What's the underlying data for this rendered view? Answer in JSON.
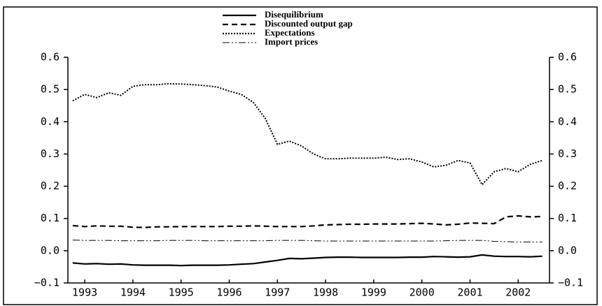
{
  "chart_data": {
    "type": "line",
    "x": [
      1993,
      1993.25,
      1993.5,
      1993.75,
      1994,
      1994.25,
      1994.5,
      1994.75,
      1995,
      1995.25,
      1995.5,
      1995.75,
      1996,
      1996.25,
      1996.5,
      1996.75,
      1997,
      1997.25,
      1997.5,
      1997.75,
      1998,
      1998.25,
      1998.5,
      1998.75,
      1999,
      1999.25,
      1999.5,
      1999.75,
      2000,
      2000.25,
      2000.5,
      2000.75,
      2001,
      2001.25,
      2001.5,
      2001.75,
      2002,
      2002.25,
      2002.5,
      2002.75
    ],
    "series": [
      {
        "name": "Disequilibrium",
        "color": "#000000",
        "dash": "solid",
        "values": [
          -0.038,
          -0.041,
          -0.04,
          -0.042,
          -0.041,
          -0.044,
          -0.045,
          -0.045,
          -0.045,
          -0.046,
          -0.045,
          -0.045,
          -0.045,
          -0.044,
          -0.042,
          -0.04,
          -0.035,
          -0.03,
          -0.024,
          -0.025,
          -0.023,
          -0.021,
          -0.02,
          -0.02,
          -0.021,
          -0.021,
          -0.021,
          -0.021,
          -0.02,
          -0.02,
          -0.018,
          -0.019,
          -0.02,
          -0.019,
          -0.013,
          -0.017,
          -0.018,
          -0.018,
          -0.019,
          -0.017
        ]
      },
      {
        "name": "Discounted output gap",
        "color": "#000000",
        "dash": "dashed",
        "values": [
          0.078,
          0.075,
          0.077,
          0.076,
          0.076,
          0.073,
          0.072,
          0.074,
          0.074,
          0.075,
          0.075,
          0.075,
          0.075,
          0.076,
          0.076,
          0.077,
          0.076,
          0.075,
          0.075,
          0.075,
          0.077,
          0.08,
          0.081,
          0.082,
          0.082,
          0.083,
          0.083,
          0.083,
          0.084,
          0.085,
          0.083,
          0.08,
          0.082,
          0.086,
          0.085,
          0.084,
          0.105,
          0.108,
          0.105,
          0.106
        ]
      },
      {
        "name": "Expectations",
        "color": "#000000",
        "dash": "dotted",
        "values": [
          0.465,
          0.485,
          0.475,
          0.49,
          0.482,
          0.51,
          0.515,
          0.515,
          0.518,
          0.517,
          0.515,
          0.512,
          0.508,
          0.495,
          0.485,
          0.46,
          0.41,
          0.33,
          0.34,
          0.325,
          0.3,
          0.285,
          0.285,
          0.287,
          0.287,
          0.287,
          0.29,
          0.283,
          0.285,
          0.275,
          0.26,
          0.265,
          0.28,
          0.272,
          0.205,
          0.245,
          0.255,
          0.245,
          0.268,
          0.28
        ]
      },
      {
        "name": "Import prices",
        "color": "#000000",
        "dash": "dashdotdot",
        "values": [
          0.033,
          0.032,
          0.032,
          0.032,
          0.031,
          0.031,
          0.031,
          0.031,
          0.032,
          0.032,
          0.032,
          0.031,
          0.031,
          0.031,
          0.031,
          0.031,
          0.031,
          0.032,
          0.032,
          0.032,
          0.031,
          0.03,
          0.03,
          0.03,
          0.03,
          0.03,
          0.03,
          0.03,
          0.03,
          0.03,
          0.03,
          0.031,
          0.032,
          0.032,
          0.032,
          0.029,
          0.028,
          0.027,
          0.027,
          0.027
        ]
      }
    ],
    "xlim": [
      1992.9,
      2002.9
    ],
    "xticks": [
      {
        "value": 1993.25,
        "label": "1993"
      },
      {
        "value": 1994.25,
        "label": "1994"
      },
      {
        "value": 1995.25,
        "label": "1995"
      },
      {
        "value": 1996.25,
        "label": "1996"
      },
      {
        "value": 1997.25,
        "label": "1997"
      },
      {
        "value": 1998.25,
        "label": "1998"
      },
      {
        "value": 1999.25,
        "label": "1999"
      },
      {
        "value": 2000.25,
        "label": "2000"
      },
      {
        "value": 2001.25,
        "label": "2001"
      },
      {
        "value": 2002.25,
        "label": "2002"
      }
    ],
    "ylim": [
      -0.1,
      0.6
    ],
    "yticks": [
      {
        "value": -0.1,
        "label": "−0.1"
      },
      {
        "value": 0,
        "label": "0.0"
      },
      0.1,
      0.2,
      0.3,
      0.4,
      0.5,
      0.6
    ],
    "legend": "top"
  }
}
